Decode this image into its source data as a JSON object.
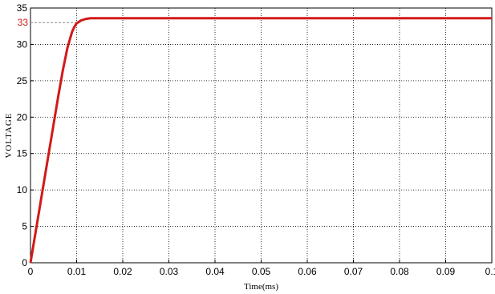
{
  "chart_data": {
    "type": "line",
    "title": "",
    "xlabel": "Time(ms)",
    "ylabel": "VOLTAGE",
    "xlim": [
      0,
      0.1
    ],
    "ylim": [
      0,
      35
    ],
    "x_tick_labels": [
      "0",
      "0.01",
      "0.02",
      "0.03",
      "0.04",
      "0.05",
      "0.06",
      "0.07",
      "0.08",
      "0.09",
      "0.1"
    ],
    "y_tick_labels": [
      "0",
      "5",
      "10",
      "15",
      "20",
      "25",
      "30",
      "35"
    ],
    "grid": true,
    "series": [
      {
        "color": "#d11a1a",
        "x": [
          0,
          0.001,
          0.002,
          0.003,
          0.004,
          0.005,
          0.006,
          0.007,
          0.008,
          0.009,
          0.0095,
          0.01,
          0.011,
          0.012,
          0.013,
          0.015,
          0.02,
          0.03,
          0.05,
          0.07,
          0.1
        ],
        "y": [
          0,
          3.8,
          7.6,
          11.4,
          15.2,
          19.0,
          22.8,
          26.4,
          29.5,
          31.7,
          32.4,
          32.9,
          33.3,
          33.5,
          33.6,
          33.6,
          33.6,
          33.6,
          33.6,
          33.6,
          33.6
        ]
      }
    ],
    "annotations": [
      {
        "text": "33",
        "y": 33,
        "color": "#d11a1a",
        "line_color": "#888888",
        "line_style": "dashed"
      }
    ]
  }
}
